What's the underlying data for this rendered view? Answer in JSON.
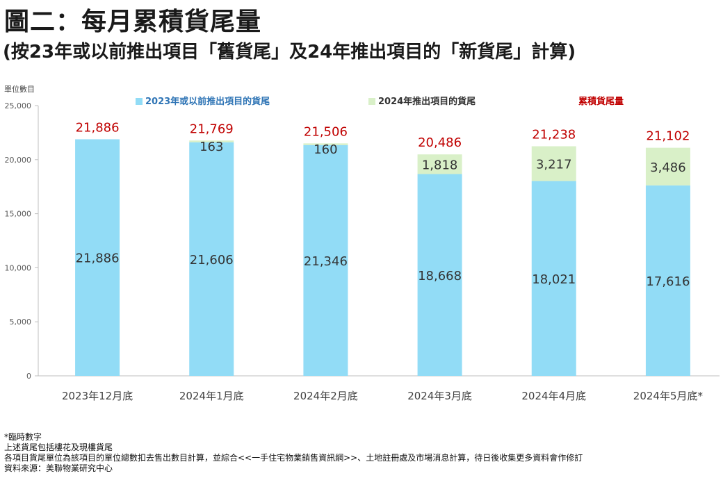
{
  "title": "圖二：每月累積貨尾量",
  "subtitle": "(按23年或以前推出項目「舊貨尾」及24年推出項目的「新貨尾」計算)",
  "unit_label": "單位數目",
  "chart_data": {
    "type": "bar",
    "stacked": true,
    "categories": [
      "2023年12月底",
      "2024年1月底",
      "2024年2月底",
      "2024年3月底",
      "2024年4月底",
      "2024年5月底*"
    ],
    "series": [
      {
        "name": "2023年或以前推出項目的貨尾",
        "color": "#92dcf6",
        "label_color": "#333333",
        "values": [
          21886,
          21606,
          21346,
          18668,
          18021,
          17616
        ]
      },
      {
        "name": "2024年推出項目的貨尾",
        "color": "#d9f0c8",
        "label_color": "#333333",
        "values": [
          0,
          163,
          160,
          1818,
          3217,
          3486
        ]
      }
    ],
    "totals": {
      "name": "累積貨尾量",
      "color": "#c00000",
      "values": [
        21886,
        21769,
        21506,
        20486,
        21238,
        21102
      ]
    },
    "ylim": [
      0,
      25000
    ],
    "yticks": [
      0,
      5000,
      10000,
      15000,
      20000,
      25000
    ],
    "ytick_labels": [
      "0",
      "5,000",
      "10,000",
      "15,000",
      "20,000",
      "25,000"
    ],
    "legend_position": "top",
    "grid": false
  },
  "notes": [
    "*臨時數字",
    "上述貨尾包括樓花及現樓貨尾",
    "各項目貨尾單位為該項目的單位總數扣去售出數目計算，並綜合<<一手住宅物業銷售資訊網>>、土地註冊處及市場消息計算，待日後收集更多資料會作修訂",
    "資料來源：美聯物業研究中心"
  ]
}
